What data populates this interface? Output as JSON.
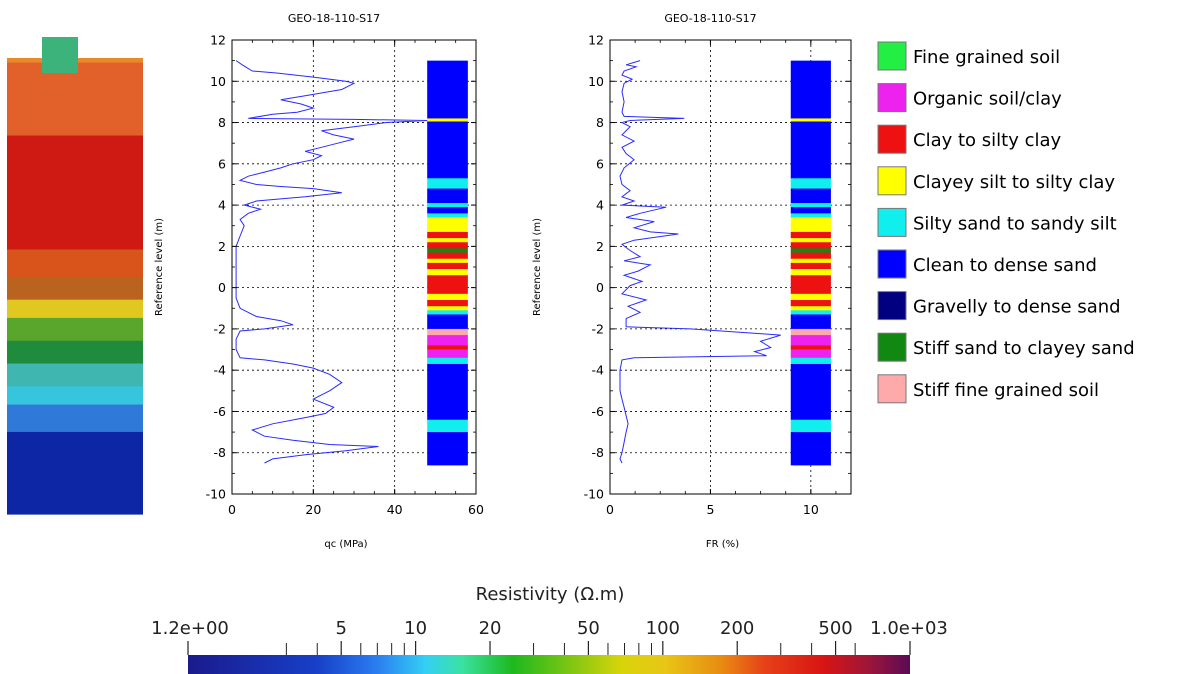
{
  "chart_data": [
    {
      "type": "heatmap",
      "description_role": "resistivity-section",
      "colorbar": {
        "title": "Resistivity (Ω.m)",
        "scale": "log",
        "range": [
          1.2,
          1000
        ],
        "tick_labels": [
          {
            "value": 1.2,
            "label": "1.2e+00"
          },
          {
            "value": 5,
            "label": "5"
          },
          {
            "value": 10,
            "label": "10"
          },
          {
            "value": 20,
            "label": "20"
          },
          {
            "value": 50,
            "label": "50"
          },
          {
            "value": 100,
            "label": "100"
          },
          {
            "value": 200,
            "label": "200"
          },
          {
            "value": 500,
            "label": "500"
          },
          {
            "value": 1000,
            "label": "1.0e+03"
          }
        ],
        "minor_ticks": [
          3,
          4,
          6,
          7,
          8,
          9,
          30,
          40,
          60,
          70,
          80,
          90,
          300,
          400,
          600
        ]
      },
      "bands": [
        {
          "from": 1.0,
          "to": 0.99,
          "color": "#e88a2a"
        },
        {
          "from": 0.99,
          "to": 0.83,
          "color": "#e2612a"
        },
        {
          "from": 0.83,
          "to": 0.58,
          "color": "#cf1a14"
        },
        {
          "from": 0.58,
          "to": 0.52,
          "color": "#d9541a"
        },
        {
          "from": 0.52,
          "to": 0.47,
          "color": "#b9631e"
        },
        {
          "from": 0.47,
          "to": 0.43,
          "color": "#e0c820"
        },
        {
          "from": 0.43,
          "to": 0.38,
          "color": "#5aa52c"
        },
        {
          "from": 0.38,
          "to": 0.33,
          "color": "#1f8b3c"
        },
        {
          "from": 0.33,
          "to": 0.28,
          "color": "#3fb7b0"
        },
        {
          "from": 0.28,
          "to": 0.24,
          "color": "#35c5dd"
        },
        {
          "from": 0.24,
          "to": 0.18,
          "color": "#2f7ad8"
        },
        {
          "from": 0.18,
          "to": 0.0,
          "color": "#0d26a6"
        }
      ],
      "marker_color": "#3cb37a"
    },
    {
      "type": "line",
      "title": "GEO-18-110-S17",
      "xlabel": "qc (MPa)",
      "ylabel": "Reference level (m)",
      "xlim": [
        0,
        60
      ],
      "ylim": [
        -10,
        12
      ],
      "xticks": [
        0,
        20,
        40,
        60
      ],
      "yticks": [
        -10,
        -8,
        -6,
        -4,
        -2,
        0,
        2,
        4,
        6,
        8,
        10,
        12
      ],
      "grid": true,
      "line_color": "#2a2aff",
      "series": [
        {
          "points": [
            [
              1,
              11
            ],
            [
              2.5,
              10.8
            ],
            [
              5,
              10.5
            ],
            [
              11,
              10.4
            ],
            [
              20,
              10.2
            ],
            [
              28,
              10.0
            ],
            [
              30,
              9.9
            ],
            [
              27,
              9.6
            ],
            [
              18,
              9.3
            ],
            [
              12,
              9.1
            ],
            [
              17,
              8.9
            ],
            [
              20,
              8.7
            ],
            [
              16,
              8.5
            ],
            [
              10,
              8.4
            ],
            [
              4,
              8.2
            ],
            [
              30,
              8.15
            ],
            [
              48,
              8.1
            ],
            [
              38,
              8.0
            ],
            [
              30,
              7.8
            ],
            [
              22,
              7.6
            ],
            [
              25,
              7.4
            ],
            [
              30,
              7.2
            ],
            [
              26,
              7.0
            ],
            [
              22,
              6.8
            ],
            [
              18,
              6.6
            ],
            [
              22,
              6.4
            ],
            [
              20,
              6.2
            ],
            [
              15,
              6.0
            ],
            [
              12,
              5.8
            ],
            [
              8,
              5.6
            ],
            [
              4,
              5.4
            ],
            [
              2,
              5.2
            ],
            [
              6,
              5.0
            ],
            [
              12,
              4.9
            ],
            [
              20,
              4.8
            ],
            [
              27,
              4.6
            ],
            [
              18,
              4.4
            ],
            [
              6,
              4.2
            ],
            [
              3,
              4.0
            ],
            [
              7,
              3.8
            ],
            [
              4,
              3.6
            ],
            [
              2,
              3.3
            ],
            [
              3,
              3.0
            ],
            [
              2,
              2.5
            ],
            [
              1,
              2.0
            ],
            [
              1,
              1.0
            ],
            [
              1,
              0.0
            ],
            [
              1,
              -0.5
            ],
            [
              2,
              -1.0
            ],
            [
              6,
              -1.4
            ],
            [
              12,
              -1.6
            ],
            [
              15,
              -1.8
            ],
            [
              8,
              -2.0
            ],
            [
              2,
              -2.1
            ],
            [
              1,
              -2.5
            ],
            [
              1,
              -3.0
            ],
            [
              2,
              -3.4
            ],
            [
              8,
              -3.5
            ],
            [
              15,
              -3.7
            ],
            [
              20,
              -3.9
            ],
            [
              24,
              -4.2
            ],
            [
              27,
              -4.6
            ],
            [
              24,
              -5.0
            ],
            [
              20,
              -5.4
            ],
            [
              25,
              -5.8
            ],
            [
              23,
              -6.1
            ],
            [
              18,
              -6.3
            ],
            [
              10,
              -6.6
            ],
            [
              5,
              -6.9
            ],
            [
              8,
              -7.2
            ],
            [
              15,
              -7.4
            ],
            [
              24,
              -7.6
            ],
            [
              36,
              -7.7
            ],
            [
              28,
              -7.9
            ],
            [
              18,
              -8.1
            ],
            [
              10,
              -8.3
            ],
            [
              8,
              -8.5
            ]
          ]
        }
      ],
      "soil_column": [
        {
          "top": 11.0,
          "bottom": 8.2,
          "class": "Clean to dense sand"
        },
        {
          "top": 8.2,
          "bottom": 8.05,
          "class": "Clayey silt to silty clay"
        },
        {
          "top": 8.05,
          "bottom": 5.3,
          "class": "Clean to dense sand"
        },
        {
          "top": 5.3,
          "bottom": 4.8,
          "class": "Silty sand to sandy silt"
        },
        {
          "top": 4.8,
          "bottom": 4.1,
          "class": "Clean to dense sand"
        },
        {
          "top": 4.1,
          "bottom": 3.9,
          "class": "Silty sand to sandy silt"
        },
        {
          "top": 3.9,
          "bottom": 3.6,
          "class": "Clean to dense sand"
        },
        {
          "top": 3.6,
          "bottom": 3.4,
          "class": "Silty sand to sandy silt"
        },
        {
          "top": 3.4,
          "bottom": 2.7,
          "class": "Clayey silt to silty clay"
        },
        {
          "top": 2.7,
          "bottom": 2.4,
          "class": "Clay to silty clay"
        },
        {
          "top": 2.4,
          "bottom": 2.2,
          "class": "Clayey silt to silty clay"
        },
        {
          "top": 2.2,
          "bottom": 1.9,
          "class": "Clay to silty clay"
        },
        {
          "top": 1.9,
          "bottom": 1.7,
          "class": "Stiff sand to clayey sand"
        },
        {
          "top": 1.7,
          "bottom": 1.4,
          "class": "Clay to silty clay"
        },
        {
          "top": 1.4,
          "bottom": 1.2,
          "class": "Clayey silt to silty clay"
        },
        {
          "top": 1.2,
          "bottom": 0.9,
          "class": "Clay to silty clay"
        },
        {
          "top": 0.9,
          "bottom": 0.6,
          "class": "Clayey silt to silty clay"
        },
        {
          "top": 0.6,
          "bottom": -0.3,
          "class": "Clay to silty clay"
        },
        {
          "top": -0.3,
          "bottom": -0.6,
          "class": "Clayey silt to silty clay"
        },
        {
          "top": -0.6,
          "bottom": -0.9,
          "class": "Clay to silty clay"
        },
        {
          "top": -0.9,
          "bottom": -1.1,
          "class": "Clayey silt to silty clay"
        },
        {
          "top": -1.1,
          "bottom": -1.3,
          "class": "Silty sand to sandy silt"
        },
        {
          "top": -1.3,
          "bottom": -2.0,
          "class": "Clean to dense sand"
        },
        {
          "top": -2.0,
          "bottom": -2.3,
          "class": "Stiff fine grained soil"
        },
        {
          "top": -2.3,
          "bottom": -2.8,
          "class": "Organic soil/clay"
        },
        {
          "top": -2.8,
          "bottom": -3.0,
          "class": "Clay to silty clay"
        },
        {
          "top": -3.0,
          "bottom": -3.4,
          "class": "Organic soil/clay"
        },
        {
          "top": -3.4,
          "bottom": -3.7,
          "class": "Silty sand to sandy silt"
        },
        {
          "top": -3.7,
          "bottom": -6.4,
          "class": "Clean to dense sand"
        },
        {
          "top": -6.4,
          "bottom": -7.0,
          "class": "Silty sand to sandy silt"
        },
        {
          "top": -7.0,
          "bottom": -8.6,
          "class": "Clean to dense sand"
        }
      ],
      "soil_column_x": [
        48,
        58
      ]
    },
    {
      "type": "line",
      "title": "GEO-18-110-S17",
      "xlabel": "FR (%)",
      "ylabel": "Reference level (m)",
      "xlim": [
        0,
        12
      ],
      "ylim": [
        -10,
        12
      ],
      "xticks": [
        0,
        5,
        10
      ],
      "yticks": [
        -10,
        -8,
        -6,
        -4,
        -2,
        0,
        2,
        4,
        6,
        8,
        10,
        12
      ],
      "grid": true,
      "line_color": "#2a2aff",
      "series": [
        {
          "points": [
            [
              1.5,
              11
            ],
            [
              0.8,
              10.8
            ],
            [
              1.3,
              10.7
            ],
            [
              0.7,
              10.5
            ],
            [
              0.6,
              10.3
            ],
            [
              1.1,
              10.1
            ],
            [
              0.7,
              9.9
            ],
            [
              0.6,
              9.5
            ],
            [
              0.7,
              9.0
            ],
            [
              0.6,
              8.5
            ],
            [
              0.7,
              8.3
            ],
            [
              3.7,
              8.2
            ],
            [
              1.0,
              8.1
            ],
            [
              0.6,
              8.0
            ],
            [
              1.0,
              7.8
            ],
            [
              0.6,
              7.4
            ],
            [
              1.2,
              7.1
            ],
            [
              0.6,
              6.8
            ],
            [
              0.8,
              6.5
            ],
            [
              1.2,
              6.2
            ],
            [
              0.7,
              5.8
            ],
            [
              0.5,
              5.4
            ],
            [
              0.6,
              5.0
            ],
            [
              1.0,
              4.7
            ],
            [
              0.6,
              4.4
            ],
            [
              1.2,
              4.2
            ],
            [
              0.6,
              4.0
            ],
            [
              2.8,
              3.9
            ],
            [
              1.5,
              3.6
            ],
            [
              0.8,
              3.4
            ],
            [
              2.2,
              3.2
            ],
            [
              1.2,
              2.9
            ],
            [
              2.0,
              2.7
            ],
            [
              3.4,
              2.6
            ],
            [
              1.2,
              2.3
            ],
            [
              0.6,
              2.1
            ],
            [
              1.0,
              1.8
            ],
            [
              1.5,
              1.5
            ],
            [
              0.7,
              1.3
            ],
            [
              2.0,
              1.1
            ],
            [
              1.4,
              0.8
            ],
            [
              0.7,
              0.6
            ],
            [
              1.6,
              0.3
            ],
            [
              1.0,
              0.1
            ],
            [
              0.6,
              -0.3
            ],
            [
              1.8,
              -0.6
            ],
            [
              0.9,
              -0.9
            ],
            [
              1.5,
              -1.2
            ],
            [
              0.8,
              -1.5
            ],
            [
              0.8,
              -1.9
            ],
            [
              4.0,
              -2.0
            ],
            [
              7.0,
              -2.2
            ],
            [
              8.5,
              -2.3
            ],
            [
              7.5,
              -2.6
            ],
            [
              8.0,
              -2.9
            ],
            [
              7.2,
              -3.1
            ],
            [
              7.8,
              -3.3
            ],
            [
              1.2,
              -3.4
            ],
            [
              0.6,
              -3.5
            ],
            [
              0.5,
              -4.0
            ],
            [
              0.5,
              -5.0
            ],
            [
              0.6,
              -5.4
            ],
            [
              0.7,
              -5.8
            ],
            [
              0.8,
              -6.2
            ],
            [
              0.9,
              -6.6
            ],
            [
              0.8,
              -7.0
            ],
            [
              0.7,
              -7.5
            ],
            [
              0.6,
              -8.0
            ],
            [
              0.5,
              -8.3
            ],
            [
              0.6,
              -8.5
            ]
          ]
        }
      ],
      "soil_column_x": [
        9,
        11
      ]
    }
  ],
  "legend": {
    "items": [
      {
        "label": "Fine grained soil",
        "color": "#22ee44"
      },
      {
        "label": "Organic soil/clay",
        "color": "#ee22ee"
      },
      {
        "label": "Clay to silty clay",
        "color": "#ee1111"
      },
      {
        "label": "Clayey silt to silty clay",
        "color": "#ffff00"
      },
      {
        "label": "Silty sand to sandy silt",
        "color": "#11eeee"
      },
      {
        "label": "Clean to dense sand",
        "color": "#0000ff"
      },
      {
        "label": "Gravelly to dense sand",
        "color": "#000080"
      },
      {
        "label": "Stiff sand to clayey sand",
        "color": "#118811"
      },
      {
        "label": "Stiff fine grained soil",
        "color": "#ffaaaa"
      }
    ]
  }
}
